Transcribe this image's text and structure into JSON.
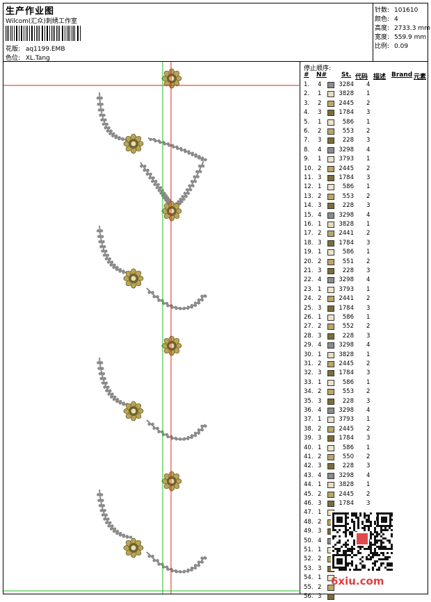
{
  "header": {
    "title": "生产作业图",
    "studio": "Wilcom(汇众)刺绣工作室",
    "pattern_label": "花版:",
    "pattern_value": "aq1199.EMB",
    "color_label": "色位:",
    "color_value": "XL.Tang"
  },
  "stats": [
    {
      "label": "针数:",
      "value": "101610"
    },
    {
      "label": "颜色:",
      "value": "4"
    },
    {
      "label": "高度:",
      "value": "2733.3 mm"
    },
    {
      "label": "宽度:",
      "value": "559.9 mm"
    },
    {
      "label": "比例:",
      "value": "0.09"
    }
  ],
  "table": {
    "title": "停止顺序:",
    "headers": [
      "#",
      "N#",
      "St.",
      "代码",
      "描述",
      "Brand",
      "元素"
    ],
    "rows": [
      {
        "idx": "1.",
        "n": "4",
        "code": "3284",
        "st": "4",
        "color": "#8c8c8c"
      },
      {
        "idx": "2.",
        "n": "1",
        "code": "3828",
        "st": "1",
        "color": "#e6dcc0"
      },
      {
        "idx": "3.",
        "n": "2",
        "code": "2445",
        "st": "2",
        "color": "#b8a868"
      },
      {
        "idx": "4.",
        "n": "3",
        "code": "1784",
        "st": "3",
        "color": "#7a6e3a"
      },
      {
        "idx": "5.",
        "n": "1",
        "code": "586",
        "st": "1",
        "color": "#ece4cc"
      },
      {
        "idx": "6.",
        "n": "2",
        "code": "553",
        "st": "2",
        "color": "#b8a868"
      },
      {
        "idx": "7.",
        "n": "3",
        "code": "228",
        "st": "3",
        "color": "#7a6e3a"
      },
      {
        "idx": "8.",
        "n": "4",
        "code": "3298",
        "st": "4",
        "color": "#8c8c8c"
      },
      {
        "idx": "9.",
        "n": "1",
        "code": "3793",
        "st": "1",
        "color": "#ece4cc"
      },
      {
        "idx": "10.",
        "n": "2",
        "code": "2445",
        "st": "2",
        "color": "#b8a868"
      },
      {
        "idx": "11.",
        "n": "3",
        "code": "1784",
        "st": "3",
        "color": "#7a6e3a"
      },
      {
        "idx": "12.",
        "n": "1",
        "code": "586",
        "st": "1",
        "color": "#ece4cc"
      },
      {
        "idx": "13.",
        "n": "2",
        "code": "553",
        "st": "2",
        "color": "#b8a868"
      },
      {
        "idx": "14.",
        "n": "3",
        "code": "228",
        "st": "3",
        "color": "#7a6e3a"
      },
      {
        "idx": "15.",
        "n": "4",
        "code": "3298",
        "st": "4",
        "color": "#8c8c8c"
      },
      {
        "idx": "16.",
        "n": "1",
        "code": "3828",
        "st": "1",
        "color": "#e6dcc0"
      },
      {
        "idx": "17.",
        "n": "2",
        "code": "2441",
        "st": "2",
        "color": "#b8a868"
      },
      {
        "idx": "18.",
        "n": "3",
        "code": "1784",
        "st": "3",
        "color": "#7a6e3a"
      },
      {
        "idx": "19.",
        "n": "1",
        "code": "586",
        "st": "1",
        "color": "#ece4cc"
      },
      {
        "idx": "20.",
        "n": "2",
        "code": "551",
        "st": "2",
        "color": "#b8a868"
      },
      {
        "idx": "21.",
        "n": "3",
        "code": "228",
        "st": "3",
        "color": "#7a6e3a"
      },
      {
        "idx": "22.",
        "n": "4",
        "code": "3298",
        "st": "4",
        "color": "#8c8c8c"
      },
      {
        "idx": "23.",
        "n": "1",
        "code": "3793",
        "st": "1",
        "color": "#ece4cc"
      },
      {
        "idx": "24.",
        "n": "2",
        "code": "2441",
        "st": "2",
        "color": "#b8a868"
      },
      {
        "idx": "25.",
        "n": "3",
        "code": "1784",
        "st": "3",
        "color": "#7a6e3a"
      },
      {
        "idx": "26.",
        "n": "1",
        "code": "586",
        "st": "1",
        "color": "#ece4cc"
      },
      {
        "idx": "27.",
        "n": "2",
        "code": "552",
        "st": "2",
        "color": "#b8a868"
      },
      {
        "idx": "28.",
        "n": "3",
        "code": "228",
        "st": "3",
        "color": "#7a6e3a"
      },
      {
        "idx": "29.",
        "n": "4",
        "code": "3298",
        "st": "4",
        "color": "#8c8c8c"
      },
      {
        "idx": "30.",
        "n": "1",
        "code": "3828",
        "st": "1",
        "color": "#e6dcc0"
      },
      {
        "idx": "31.",
        "n": "2",
        "code": "2445",
        "st": "2",
        "color": "#b8a868"
      },
      {
        "idx": "32.",
        "n": "3",
        "code": "1784",
        "st": "3",
        "color": "#7a6e3a"
      },
      {
        "idx": "33.",
        "n": "1",
        "code": "586",
        "st": "1",
        "color": "#ece4cc"
      },
      {
        "idx": "34.",
        "n": "2",
        "code": "553",
        "st": "2",
        "color": "#b8a868"
      },
      {
        "idx": "35.",
        "n": "3",
        "code": "228",
        "st": "3",
        "color": "#7a6e3a"
      },
      {
        "idx": "36.",
        "n": "4",
        "code": "3298",
        "st": "4",
        "color": "#8c8c8c"
      },
      {
        "idx": "37.",
        "n": "1",
        "code": "3793",
        "st": "1",
        "color": "#ece4cc"
      },
      {
        "idx": "38.",
        "n": "2",
        "code": "2445",
        "st": "2",
        "color": "#b8a868"
      },
      {
        "idx": "39.",
        "n": "3",
        "code": "1784",
        "st": "3",
        "color": "#7a6e3a"
      },
      {
        "idx": "40.",
        "n": "1",
        "code": "586",
        "st": "1",
        "color": "#ece4cc"
      },
      {
        "idx": "41.",
        "n": "2",
        "code": "550",
        "st": "2",
        "color": "#b8a868"
      },
      {
        "idx": "42.",
        "n": "3",
        "code": "228",
        "st": "3",
        "color": "#7a6e3a"
      },
      {
        "idx": "43.",
        "n": "4",
        "code": "3298",
        "st": "4",
        "color": "#8c8c8c"
      },
      {
        "idx": "44.",
        "n": "1",
        "code": "3828",
        "st": "1",
        "color": "#e6dcc0"
      },
      {
        "idx": "45.",
        "n": "2",
        "code": "2445",
        "st": "2",
        "color": "#b8a868"
      },
      {
        "idx": "46.",
        "n": "3",
        "code": "1784",
        "st": "3",
        "color": "#7a6e3a"
      },
      {
        "idx": "47.",
        "n": "1",
        "code": "",
        "st": "",
        "color": "#ece4cc"
      },
      {
        "idx": "48.",
        "n": "2",
        "code": "",
        "st": "",
        "color": "#b8a868"
      },
      {
        "idx": "49.",
        "n": "3",
        "code": "",
        "st": "",
        "color": "#7a6e3a"
      },
      {
        "idx": "50.",
        "n": "4",
        "code": "",
        "st": "",
        "color": "#8c8c8c"
      },
      {
        "idx": "51.",
        "n": "1",
        "code": "",
        "st": "",
        "color": "#ece4cc"
      },
      {
        "idx": "52.",
        "n": "2",
        "code": "",
        "st": "",
        "color": "#b8a868"
      },
      {
        "idx": "53.",
        "n": "3",
        "code": "",
        "st": "",
        "color": "#7a6e3a"
      },
      {
        "idx": "54.",
        "n": "1",
        "code": "",
        "st": "",
        "color": "#ece4cc"
      },
      {
        "idx": "55.",
        "n": "2",
        "code": "",
        "st": "",
        "color": "#b8a868"
      },
      {
        "idx": "56.",
        "n": "3",
        "code": "",
        "st": "",
        "color": "#7a6e3a"
      }
    ]
  },
  "watermark": "6xiu.com",
  "colors": {
    "guide_red": "#e02020",
    "guide_green": "#22bb22",
    "motif_gold": "#b9a456",
    "motif_dark": "#6e6430",
    "leaf_gray": "#8a8a8a"
  }
}
